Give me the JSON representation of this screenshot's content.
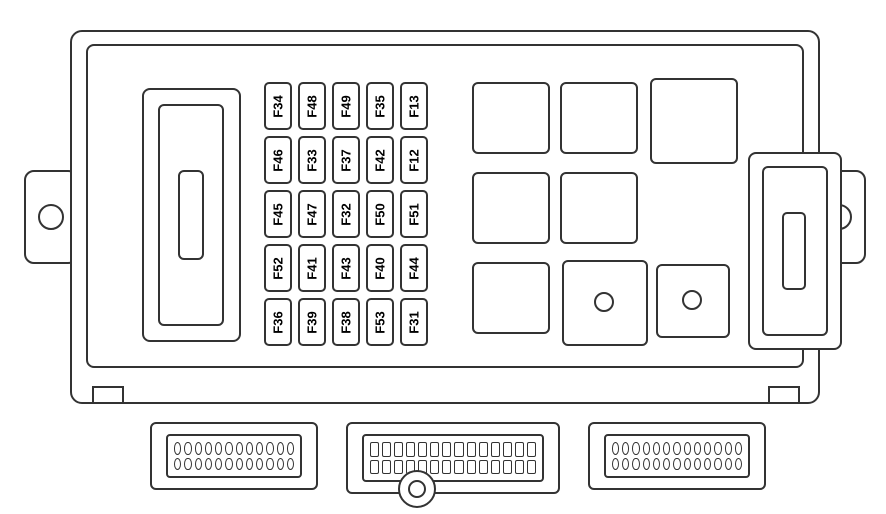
{
  "diagram": {
    "type": "fuse-box-layout",
    "background_color": "#ffffff",
    "stroke_color": "#333333",
    "stroke_width": 2,
    "fuse_label_fontsize": 13,
    "fuse_label_fontweight": "bold",
    "fuse_label_color": "#000000",
    "fuses": {
      "grid": {
        "rows": 5,
        "cols": 5
      },
      "cell_size": {
        "w": 28,
        "h": 48
      },
      "labels": [
        [
          "F34",
          "F48",
          "F49",
          "F35",
          "F13"
        ],
        [
          "F46",
          "F33",
          "F37",
          "F42",
          "F12"
        ],
        [
          "F45",
          "F47",
          "F32",
          "F50",
          "F51"
        ],
        [
          "F52",
          "F41",
          "F43",
          "F40",
          "F44"
        ],
        [
          "F36",
          "F39",
          "F38",
          "F53",
          "F31"
        ]
      ]
    },
    "relays_right": {
      "count": 8
    },
    "connectors": {
      "a": {
        "pin_cols": 12,
        "pin_rows": 2
      },
      "b": {
        "pin_cols": 14,
        "pin_rows": 2
      },
      "c": {
        "pin_cols": 13,
        "pin_rows": 2
      }
    }
  }
}
